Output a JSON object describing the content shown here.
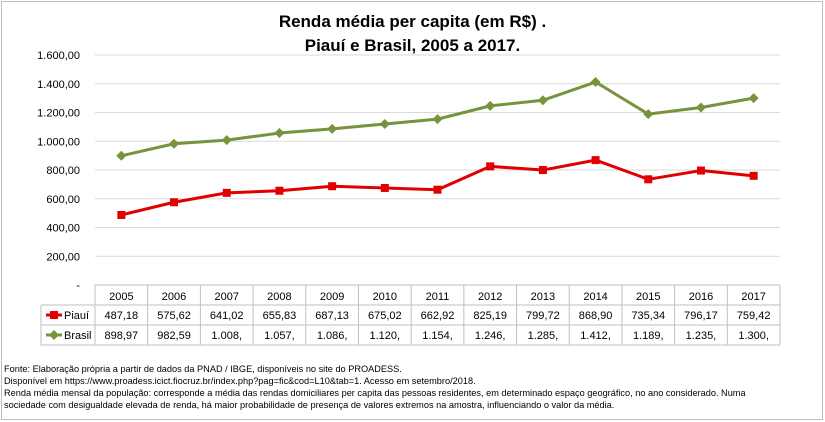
{
  "chart_data": {
    "type": "line",
    "title": "Renda média per capita (em R$) .",
    "subtitle": "Piauí e Brasil, 2005 a 2017.",
    "categories": [
      "2005",
      "2006",
      "2007",
      "2008",
      "2009",
      "2010",
      "2011",
      "2012",
      "2013",
      "2014",
      "2015",
      "2016",
      "2017"
    ],
    "series": [
      {
        "name": "Piauí",
        "color": "#e00000",
        "marker": "square",
        "values": [
          487.18,
          575.62,
          641.02,
          655.83,
          687.13,
          675.02,
          662.92,
          825.19,
          799.72,
          868.9,
          735.34,
          796.17,
          759.42
        ],
        "table_labels": [
          "487,18",
          "575,62",
          "641,02",
          "655,83",
          "687,13",
          "675,02",
          "662,92",
          "825,19",
          "799,72",
          "868,90",
          "735,34",
          "796,17",
          "759,42"
        ]
      },
      {
        "name": "Brasil",
        "color": "#77933c",
        "marker": "diamond",
        "values": [
          898.97,
          982.59,
          1008,
          1057,
          1086,
          1120,
          1154,
          1246,
          1285,
          1412,
          1189,
          1235,
          1300
        ],
        "table_labels": [
          "898,97",
          "982,59",
          "1.008,",
          "1.057,",
          "1.086,",
          "1.120,",
          "1.154,",
          "1.246,",
          "1.285,",
          "1.412,",
          "1.189,",
          "1.235,",
          "1.300,"
        ]
      }
    ],
    "ylim": [
      0,
      1600
    ],
    "yticks": [
      0,
      200,
      400,
      600,
      800,
      1000,
      1200,
      1400,
      1600
    ],
    "ytick_labels": [
      "-",
      "200,00",
      "400,00",
      "600,00",
      "800,00",
      "1.000,00",
      "1.200,00",
      "1.400,00",
      "1.600,00"
    ],
    "grid": true,
    "legend": "data-table"
  },
  "footnotes": [
    "Fonte: Elaboração própria a partir de dados da PNAD / IBGE, disponíveis no site do PROADESS.",
    "Disponível em https://www.proadess.icict.fiocruz.br/index.php?pag=fic&cod=L10&tab=1. Acesso em setembro/2018.",
    "Renda média mensal da população: corresponde a média das rendas domiciliares per capita das pessoas residentes, em determinado espaço geográfico, no ano considerado. Numa",
    "sociedade com desigualdade elevada de renda, há maior probabilidade de presença de valores extremos na amostra, influenciando o valor da média."
  ]
}
